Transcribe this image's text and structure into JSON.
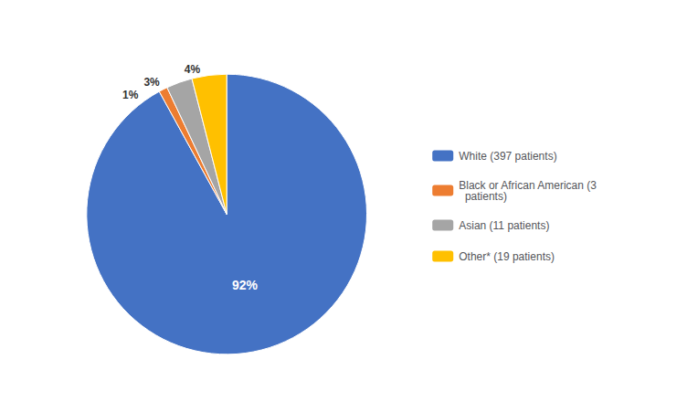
{
  "chart_data": {
    "type": "pie",
    "categories": [
      "White (397 patients)",
      "Black or African American (3\n  patients)",
      "Asian (11 patients)",
      "Other* (19 patients)"
    ],
    "values": [
      92,
      1,
      3,
      4
    ],
    "value_labels": [
      "92%",
      "1%",
      "3%",
      "4%"
    ],
    "colors": [
      "#4472C4",
      "#ED7D31",
      "#A5A5A5",
      "#FFC000"
    ],
    "legend": "right",
    "data_labels": true
  }
}
